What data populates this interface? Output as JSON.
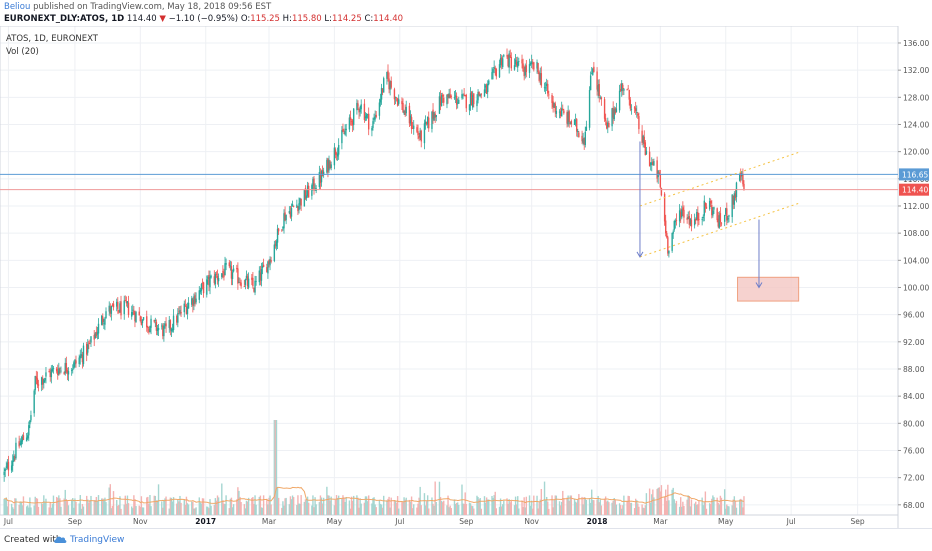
{
  "header": {
    "author": "Beliou",
    "published_text": "published on TradingView.com, May 18, 2018 09:56 EST",
    "symbol": "EURONEXT_DLY:ATOS, 1D",
    "last": "114.40",
    "change_arrow": "▼",
    "change": "−1.10 (−0.95%)",
    "o_label": "O:",
    "o_value": "115.25",
    "h_label": "H:",
    "h_value": "115.80",
    "l_label": "L:",
    "l_value": "114.25",
    "c_label": "C:",
    "c_value": "114.40"
  },
  "legend": {
    "symbol_line": "ATOS, 1D, EURONEXT",
    "volume_line": "Vol (20)"
  },
  "footer": {
    "created_with": "Created with",
    "brand": "TradingView"
  },
  "colors": {
    "up": "#26a69a",
    "down": "#ef5350",
    "resistance_line": "#5b9bd5",
    "last_price_line": "#ef9a9a",
    "channel": "#f5c242",
    "arrow": "#6f7fc9",
    "target_box_fill": "#f4c7c3",
    "target_box_border": "#f0a080",
    "volume_ma": "#f0a868",
    "grid": "#eef0f4"
  },
  "chart_data": {
    "type": "candlestick",
    "symbol": "ATOS",
    "interval": "1D",
    "exchange": "EURONEXT",
    "y_ticks": [
      "68.00",
      "72.00",
      "76.00",
      "80.00",
      "84.00",
      "88.00",
      "92.00",
      "96.00",
      "100.00",
      "104.00",
      "108.00",
      "112.00",
      "116.00",
      "120.00",
      "124.00",
      "128.00",
      "132.00",
      "136.00"
    ],
    "ylim": [
      66.5,
      138.5
    ],
    "x_ticks": [
      "Jul",
      "Sep",
      "Nov",
      "2017",
      "Mar",
      "May",
      "Jul",
      "Sep",
      "Nov",
      "2018",
      "Mar",
      "May",
      "Jul",
      "Sep"
    ],
    "x_range": [
      "2016-07",
      "2018-09"
    ],
    "price_path": [
      {
        "date": "2016-06-27",
        "close": 72.5
      },
      {
        "date": "2016-07-08",
        "close": 76.0
      },
      {
        "date": "2016-07-20",
        "close": 79.0
      },
      {
        "date": "2016-07-26",
        "close": 86.0
      },
      {
        "date": "2016-08-15",
        "close": 88.0
      },
      {
        "date": "2016-08-31",
        "close": 88.5
      },
      {
        "date": "2016-09-15",
        "close": 91.5
      },
      {
        "date": "2016-09-30",
        "close": 96.5
      },
      {
        "date": "2016-10-20",
        "close": 97.0
      },
      {
        "date": "2016-11-10",
        "close": 94.5
      },
      {
        "date": "2016-11-25",
        "close": 93.5
      },
      {
        "date": "2016-12-15",
        "close": 97.5
      },
      {
        "date": "2017-01-05",
        "close": 101.0
      },
      {
        "date": "2017-01-20",
        "close": 102.5
      },
      {
        "date": "2017-02-15",
        "close": 100.0
      },
      {
        "date": "2017-03-01",
        "close": 104.0
      },
      {
        "date": "2017-03-15",
        "close": 110.5
      },
      {
        "date": "2017-04-01",
        "close": 113.0
      },
      {
        "date": "2017-04-20",
        "close": 116.5
      },
      {
        "date": "2017-05-01",
        "close": 120.0
      },
      {
        "date": "2017-05-25",
        "close": 127.0
      },
      {
        "date": "2017-06-05",
        "close": 123.5
      },
      {
        "date": "2017-06-18",
        "close": 131.0
      },
      {
        "date": "2017-07-05",
        "close": 126.0
      },
      {
        "date": "2017-07-20",
        "close": 122.0
      },
      {
        "date": "2017-08-10",
        "close": 128.0
      },
      {
        "date": "2017-09-01",
        "close": 127.5
      },
      {
        "date": "2017-09-20",
        "close": 129.0
      },
      {
        "date": "2017-10-05",
        "close": 134.0
      },
      {
        "date": "2017-10-25",
        "close": 132.0
      },
      {
        "date": "2017-11-05",
        "close": 132.5
      },
      {
        "date": "2017-11-20",
        "close": 127.0
      },
      {
        "date": "2017-12-10",
        "close": 124.0
      },
      {
        "date": "2017-12-20",
        "close": 122.0
      },
      {
        "date": "2017-12-28",
        "close": 133.0
      },
      {
        "date": "2018-01-10",
        "close": 123.0
      },
      {
        "date": "2018-01-25",
        "close": 130.0
      },
      {
        "date": "2018-02-05",
        "close": 126.0
      },
      {
        "date": "2018-02-15",
        "close": 120.0
      },
      {
        "date": "2018-02-28",
        "close": 116.0
      },
      {
        "date": "2018-03-08",
        "close": 106.0
      },
      {
        "date": "2018-03-20",
        "close": 111.5
      },
      {
        "date": "2018-04-01",
        "close": 109.5
      },
      {
        "date": "2018-04-15",
        "close": 112.5
      },
      {
        "date": "2018-04-25",
        "close": 109.5
      },
      {
        "date": "2018-05-05",
        "close": 111.5
      },
      {
        "date": "2018-05-15",
        "close": 116.5
      },
      {
        "date": "2018-05-18",
        "close": 114.4
      }
    ],
    "levels": {
      "resistance": {
        "value": 116.65,
        "label": "116.65"
      },
      "last_price": {
        "value": 114.4,
        "label": "114.40"
      }
    },
    "annotations": {
      "channel_upper": [
        {
          "date": "2018-02-10",
          "price": 112.0
        },
        {
          "date": "2018-07-10",
          "price": 120.0
        }
      ],
      "channel_lower": [
        {
          "date": "2018-02-10",
          "price": 104.5
        },
        {
          "date": "2018-07-10",
          "price": 112.5
        }
      ],
      "measured_move_arrow": {
        "date": "2018-02-10",
        "from": 121.5,
        "to": 104.5
      },
      "projection_arrow": {
        "date": "2018-06-01",
        "from": 110.0,
        "to": 100.0
      },
      "target_zone": {
        "from_date": "2018-05-12",
        "to_date": "2018-07-08",
        "low": 98.0,
        "high": 101.5
      }
    },
    "volume": {
      "name": "Vol (20)",
      "ma_period": 20,
      "spike_date": "2017-03-07"
    }
  }
}
